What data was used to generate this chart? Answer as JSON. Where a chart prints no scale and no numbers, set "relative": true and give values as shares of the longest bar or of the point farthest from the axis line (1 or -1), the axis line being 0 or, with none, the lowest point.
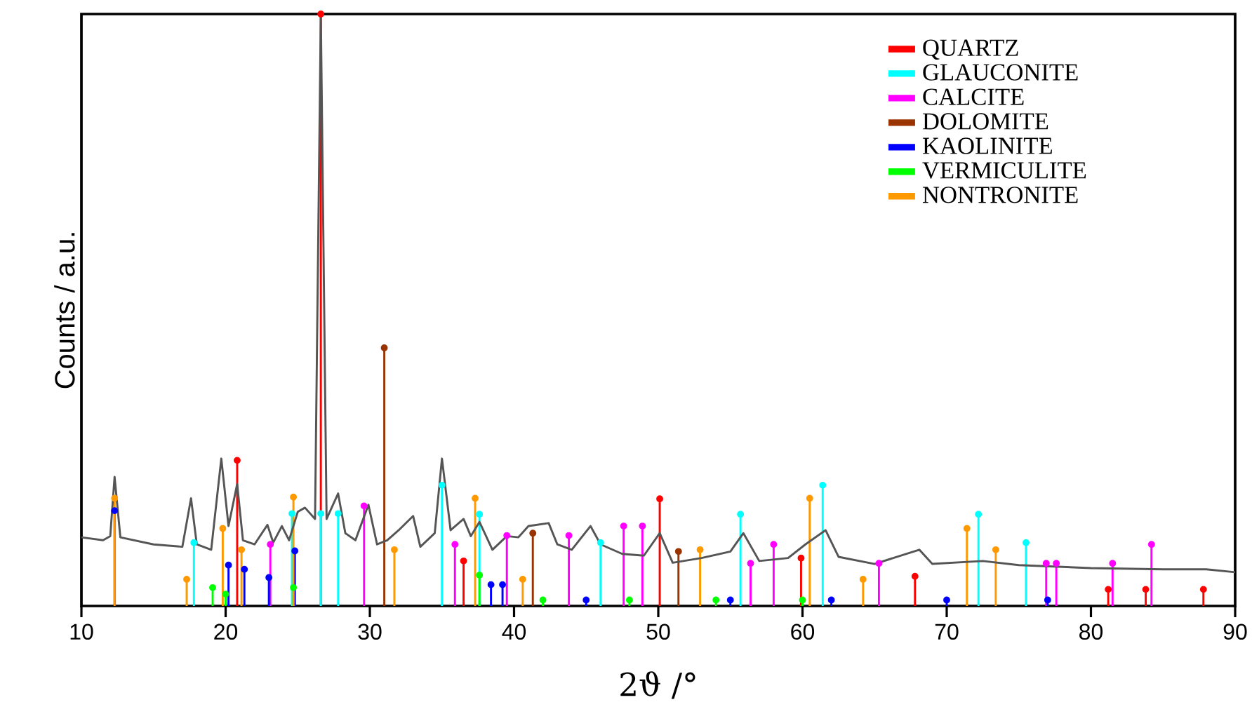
{
  "chart_data": {
    "type": "line",
    "xlabel": "2ϑ /°",
    "ylabel": "Counts / a.u.",
    "xlim": [
      10,
      90
    ],
    "xticks": [
      10,
      20,
      30,
      40,
      50,
      60,
      70,
      80,
      90
    ],
    "relative": true,
    "tick_labels": "x",
    "grid": false,
    "legend": "top right",
    "series": [
      {
        "name": "QUARTZ",
        "type": "lollipop",
        "marker": "circle",
        "color": "#ff0000",
        "x": [
          20.8,
          26.6,
          36.5,
          50.1,
          59.9,
          67.8,
          81.2,
          83.8,
          87.8
        ],
        "values": [
          0.246,
          1.0,
          0.076,
          0.181,
          0.081,
          0.05,
          0.028,
          0.028,
          0.028
        ]
      },
      {
        "name": "GLAUCONITE",
        "type": "lollipop",
        "marker": "circle",
        "color": "#00ffff",
        "x": [
          17.8,
          24.6,
          26.6,
          27.8,
          35.0,
          37.6,
          46.0,
          55.7,
          61.4,
          72.2,
          75.5
        ],
        "values": [
          0.107,
          0.156,
          0.156,
          0.156,
          0.204,
          0.155,
          0.107,
          0.155,
          0.204,
          0.155,
          0.107
        ]
      },
      {
        "name": "CALCITE",
        "type": "lollipop",
        "marker": "circle",
        "color": "#ff00ff",
        "x": [
          23.1,
          29.6,
          35.9,
          39.5,
          43.8,
          47.6,
          48.9,
          56.4,
          58.0,
          65.3,
          76.9,
          77.6,
          81.5,
          84.2
        ],
        "values": [
          0.104,
          0.169,
          0.104,
          0.119,
          0.119,
          0.135,
          0.135,
          0.072,
          0.104,
          0.072,
          0.072,
          0.072,
          0.072,
          0.104
        ]
      },
      {
        "name": "DOLOMITE",
        "type": "lollipop",
        "marker": "circle",
        "color": "#993300",
        "x": [
          31.0,
          41.3,
          51.4
        ],
        "values": [
          0.436,
          0.123,
          0.092
        ]
      },
      {
        "name": "KAOLINITE",
        "type": "lollipop",
        "marker": "circle",
        "color": "#0000ff",
        "x": [
          12.3,
          20.2,
          21.3,
          23.0,
          24.8,
          38.4,
          39.2,
          45.0,
          55.0,
          62.0,
          70.0,
          77.0
        ],
        "values": [
          0.161,
          0.069,
          0.062,
          0.048,
          0.093,
          0.036,
          0.036,
          0.01,
          0.01,
          0.01,
          0.01,
          0.01
        ]
      },
      {
        "name": "VERMICULITE",
        "type": "lollipop",
        "marker": "circle",
        "color": "#00ff00",
        "x": [
          19.1,
          20.0,
          24.7,
          37.6,
          42.0,
          48.0,
          54.0,
          60.0
        ],
        "values": [
          0.031,
          0.02,
          0.031,
          0.052,
          0.01,
          0.01,
          0.01,
          0.01
        ]
      },
      {
        "name": "NONTRONITE",
        "type": "lollipop",
        "marker": "circle",
        "color": "#ff9900",
        "x": [
          12.3,
          17.3,
          19.8,
          21.1,
          24.7,
          31.7,
          37.3,
          40.6,
          52.9,
          60.5,
          64.2,
          71.4,
          73.4
        ],
        "values": [
          0.182,
          0.045,
          0.131,
          0.095,
          0.184,
          0.095,
          0.182,
          0.045,
          0.095,
          0.182,
          0.045,
          0.131,
          0.095
        ]
      },
      {
        "color": "#555555",
        "x": [
          10,
          11.5,
          12.0,
          12.3,
          12.7,
          15,
          17,
          17.6,
          18.0,
          19,
          19.7,
          20.2,
          20.8,
          21.2,
          22,
          22.9,
          23.3,
          23.9,
          24.4,
          25.0,
          25.5,
          26.2,
          26.6,
          27.0,
          27.8,
          28.3,
          29,
          29.9,
          30.5,
          31.2,
          32.0,
          33.0,
          33.5,
          34.5,
          35.0,
          35.6,
          36.5,
          37.0,
          37.6,
          38.5,
          39.5,
          40.3,
          41,
          42.4,
          43,
          44,
          45.3,
          46,
          47.5,
          49,
          50.1,
          51,
          53,
          55,
          55.9,
          57,
          59,
          60.2,
          61.6,
          62.5,
          65,
          68.1,
          69,
          72.5,
          75,
          80,
          85,
          88,
          90
        ],
        "values": [
          0.116,
          0.111,
          0.118,
          0.218,
          0.116,
          0.104,
          0.1,
          0.182,
          0.104,
          0.095,
          0.249,
          0.135,
          0.206,
          0.111,
          0.104,
          0.137,
          0.107,
          0.135,
          0.111,
          0.159,
          0.166,
          0.147,
          1.0,
          0.147,
          0.19,
          0.123,
          0.111,
          0.171,
          0.104,
          0.111,
          0.128,
          0.152,
          0.1,
          0.123,
          0.249,
          0.128,
          0.147,
          0.118,
          0.142,
          0.095,
          0.118,
          0.116,
          0.135,
          0.14,
          0.104,
          0.095,
          0.135,
          0.104,
          0.088,
          0.085,
          0.123,
          0.073,
          0.081,
          0.092,
          0.123,
          0.076,
          0.081,
          0.104,
          0.128,
          0.083,
          0.071,
          0.095,
          0.071,
          0.076,
          0.069,
          0.064,
          0.062,
          0.062,
          0.057
        ]
      }
    ]
  }
}
